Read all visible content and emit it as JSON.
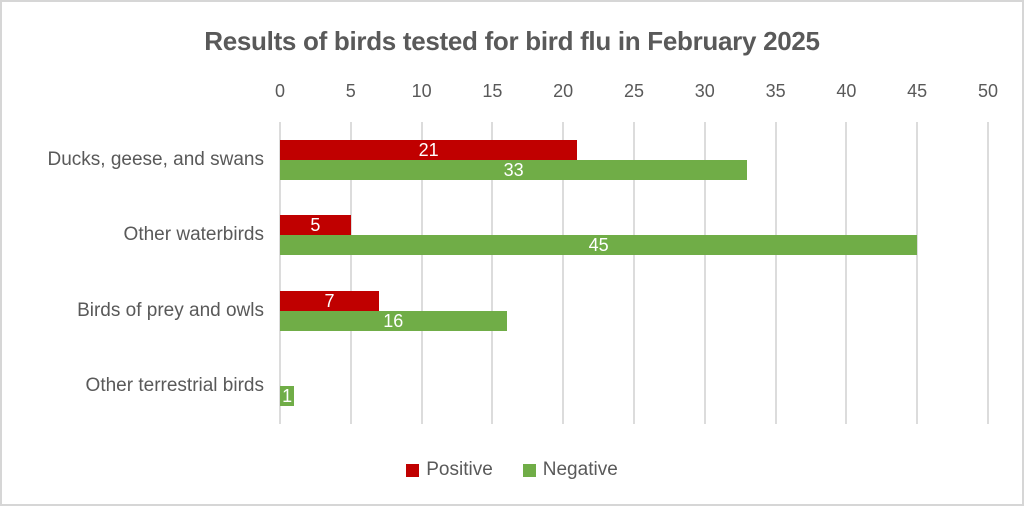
{
  "title": "Results of birds tested for bird flu in February 2025",
  "chart_data": {
    "type": "bar",
    "orientation": "horizontal",
    "title": "Results of birds tested for bird flu in February 2025",
    "categories": [
      "Ducks, geese, and swans",
      "Other waterbirds",
      "Birds of prey and owls",
      "Other terrestrial birds"
    ],
    "series": [
      {
        "name": "Positive",
        "color": "#c00000",
        "values": [
          21,
          5,
          7,
          0
        ]
      },
      {
        "name": "Negative",
        "color": "#70ad47",
        "values": [
          33,
          45,
          16,
          1
        ]
      }
    ],
    "xlabel": "",
    "ylabel": "",
    "xlim": [
      0,
      50
    ],
    "xticks": [
      0,
      5,
      10,
      15,
      20,
      25,
      30,
      35,
      40,
      45,
      50
    ],
    "grid": "vertical",
    "legend_position": "bottom",
    "data_labels": "inside-center-white",
    "zero_values_hidden": true
  },
  "colors": {
    "title_text": "#595959",
    "axis_text": "#595959",
    "gridline": "#dcdcdc",
    "frame_border": "#d6d6d6",
    "bar_label_text": "#ffffff"
  }
}
